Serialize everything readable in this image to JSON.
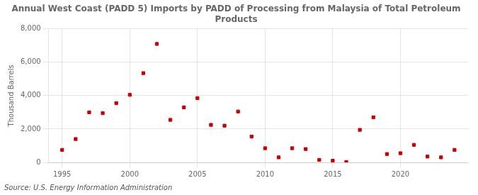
{
  "chart_data": {
    "type": "scatter",
    "title": "Annual West Coast (PADD 5) Imports by PADD of Processing from Malaysia of Total Petroleum\nProducts",
    "ylabel": "Thousand Barrels",
    "annotations": [
      "Source: U.S. Energy Information Administration"
    ],
    "x": [
      1995,
      1996,
      1997,
      1998,
      1999,
      2000,
      2001,
      2002,
      2003,
      2004,
      2005,
      2006,
      2007,
      2008,
      2009,
      2010,
      2011,
      2012,
      2013,
      2014,
      2015,
      2016,
      2017,
      2018,
      2019,
      2020,
      2021,
      2022,
      2023,
      2024
    ],
    "values": [
      750,
      1400,
      3000,
      2950,
      3550,
      4050,
      5350,
      7100,
      2550,
      3300,
      3850,
      2250,
      2200,
      3050,
      1550,
      850,
      300,
      850,
      800,
      150,
      100,
      25,
      1950,
      2700,
      500,
      550,
      1050,
      350,
      300,
      750
    ],
    "color": "#cc0000",
    "marker": "square",
    "xlim": [
      1994,
      2025
    ],
    "xticks": [
      1995,
      2000,
      2005,
      2010,
      2015,
      2020
    ],
    "ylim": [
      0,
      8000
    ],
    "yticks": [
      0,
      {
        "value": 2000,
        "label": "2,000"
      },
      {
        "value": 4000,
        "label": "4,000"
      },
      {
        "value": 6000,
        "label": "6,000"
      },
      {
        "value": 8000,
        "label": "8,000"
      }
    ],
    "grid": true
  }
}
